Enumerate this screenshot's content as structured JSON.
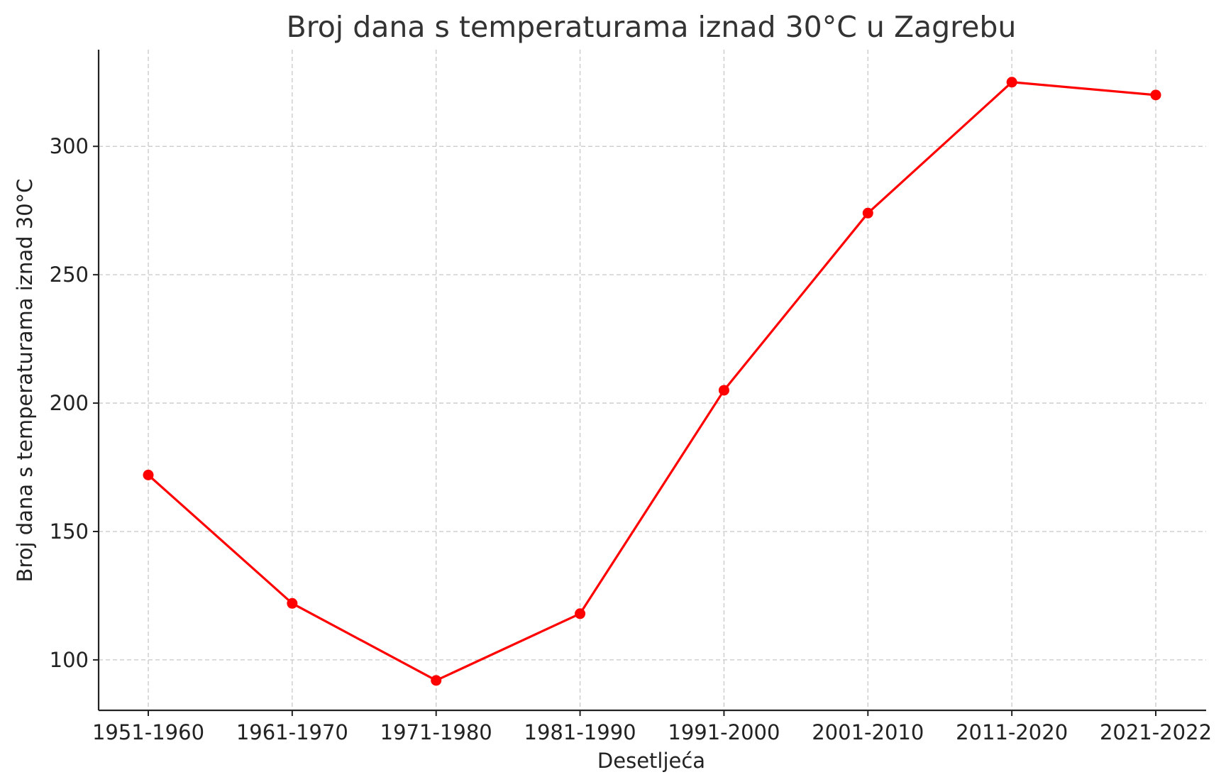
{
  "chart_data": {
    "type": "line",
    "title": "Broj dana s temperaturama iznad 30°C u Zagrebu",
    "xlabel": "Desetljeća",
    "ylabel": "Broj dana s temperaturama iznad 30°C",
    "categories": [
      "1951-1960",
      "1961-1970",
      "1971-1980",
      "1981-1990",
      "1991-2000",
      "2001-2010",
      "2011-2020",
      "2021-2022"
    ],
    "series": [
      {
        "values": [
          172,
          122,
          92,
          118,
          205,
          274,
          325,
          320
        ],
        "color": "#ff0000",
        "marker": "circle"
      }
    ],
    "ylim": [
      80.35,
      337.65
    ],
    "yticks": [
      100,
      150,
      200,
      250,
      300
    ],
    "grid": true,
    "legend": "none"
  }
}
